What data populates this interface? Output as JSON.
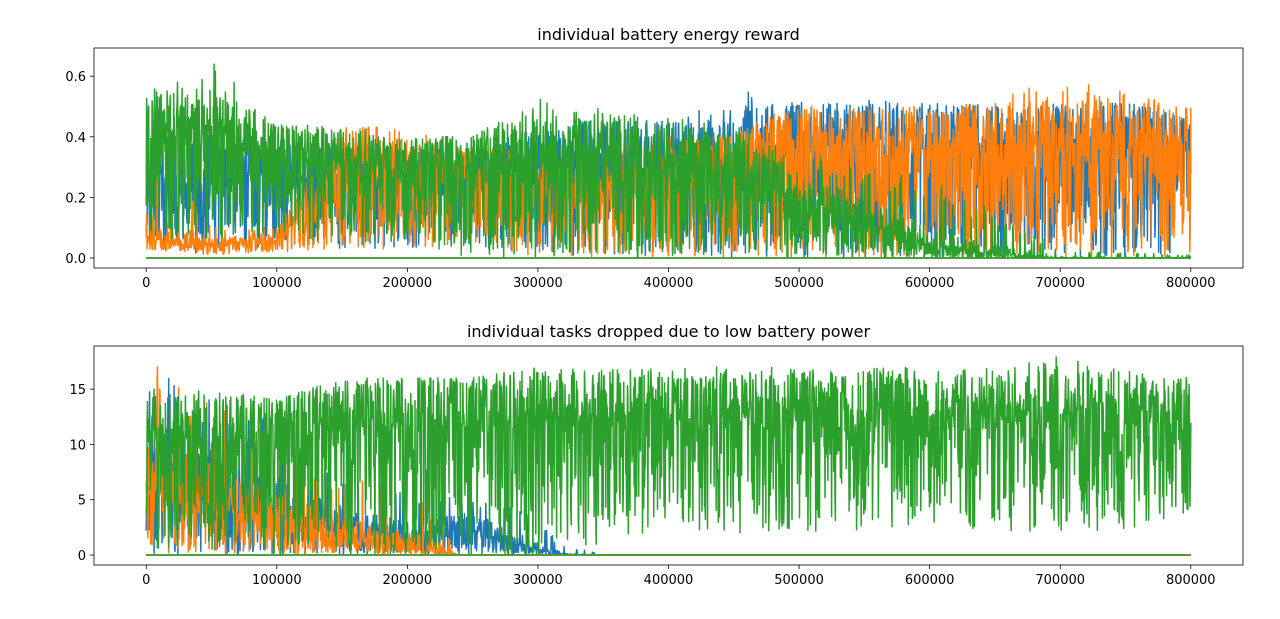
{
  "chart_data": [
    {
      "type": "line",
      "title": "individual battery energy reward",
      "xlabel": "",
      "ylabel": "",
      "xlim": [
        -40000,
        840000
      ],
      "ylim": [
        -0.033,
        0.693
      ],
      "xticks": [
        0,
        100000,
        200000,
        300000,
        400000,
        500000,
        600000,
        700000,
        800000
      ],
      "xtick_labels": [
        "0",
        "100000",
        "200000",
        "300000",
        "400000",
        "500000",
        "600000",
        "700000",
        "800000"
      ],
      "yticks": [
        0.0,
        0.2,
        0.4,
        0.6
      ],
      "ytick_labels": [
        "0.0",
        "0.2",
        "0.4",
        "0.6"
      ],
      "grid": false,
      "series": [
        {
          "color": "#1f77b4",
          "x": [
            0,
            50000,
            100000,
            150000,
            200000,
            250000,
            300000,
            350000,
            400000,
            450000,
            500000,
            550000,
            600000,
            650000,
            700000,
            750000,
            800000
          ],
          "upper": [
            0.57,
            0.45,
            0.4,
            0.38,
            0.37,
            0.35,
            0.44,
            0.46,
            0.45,
            0.55,
            0.54,
            0.52,
            0.52,
            0.5,
            0.52,
            0.53,
            0.45
          ],
          "lower": [
            0.03,
            0.01,
            0.03,
            0.03,
            0.03,
            0.04,
            0.0,
            0.0,
            0.0,
            0.0,
            0.0,
            0.0,
            0.0,
            0.0,
            0.0,
            0.0,
            0.0
          ],
          "band": [
            0.3,
            0.33,
            0.3,
            0.32,
            0.3,
            0.29,
            0.36,
            0.38,
            0.37,
            0.4,
            0.42,
            0.42,
            0.42,
            0.42,
            0.42,
            0.42,
            0.41
          ]
        },
        {
          "color": "#ff7f0e",
          "x": [
            0,
            50000,
            100000,
            150000,
            200000,
            250000,
            300000,
            350000,
            400000,
            450000,
            500000,
            550000,
            600000,
            650000,
            700000,
            750000,
            800000
          ],
          "upper": [
            0.42,
            0.11,
            0.1,
            0.45,
            0.42,
            0.37,
            0.35,
            0.37,
            0.4,
            0.4,
            0.53,
            0.5,
            0.5,
            0.52,
            0.6,
            0.55,
            0.5
          ],
          "lower": [
            0.03,
            0.01,
            0.02,
            0.03,
            0.03,
            0.04,
            0.0,
            0.0,
            0.0,
            0.0,
            0.0,
            0.0,
            0.0,
            0.0,
            0.0,
            0.0,
            0.0
          ],
          "band": [
            0.08,
            0.05,
            0.07,
            0.34,
            0.32,
            0.3,
            0.25,
            0.25,
            0.3,
            0.38,
            0.4,
            0.4,
            0.41,
            0.41,
            0.42,
            0.42,
            0.42
          ]
        },
        {
          "color": "#2ca02c",
          "x": [
            0,
            50000,
            100000,
            150000,
            200000,
            250000,
            300000,
            350000,
            400000,
            450000,
            500000,
            550000,
            600000,
            650000,
            700000,
            750000,
            800000
          ],
          "upper": [
            0.55,
            0.66,
            0.44,
            0.44,
            0.4,
            0.4,
            0.53,
            0.49,
            0.47,
            0.44,
            0.34,
            0.32,
            0.26,
            0.16,
            0.03,
            0.02,
            0.01
          ],
          "lower": [
            0.06,
            0.06,
            0.07,
            0.05,
            0.05,
            0.0,
            0.0,
            0.0,
            0.0,
            0.0,
            0.0,
            0.0,
            0.0,
            0.0,
            0.0,
            0.0,
            0.0
          ],
          "band": [
            0.45,
            0.46,
            0.38,
            0.35,
            0.33,
            0.36,
            0.38,
            0.37,
            0.36,
            0.33,
            0.22,
            0.14,
            0.05,
            0.02,
            0.0,
            0.0,
            0.0
          ]
        }
      ]
    },
    {
      "type": "line",
      "title": "individual tasks dropped due to low battery power",
      "xlabel": "",
      "ylabel": "",
      "xlim": [
        -40000,
        840000
      ],
      "ylim": [
        -0.9,
        18.9
      ],
      "xticks": [
        0,
        100000,
        200000,
        300000,
        400000,
        500000,
        600000,
        700000,
        800000
      ],
      "xtick_labels": [
        "0",
        "100000",
        "200000",
        "300000",
        "400000",
        "500000",
        "600000",
        "700000",
        "800000"
      ],
      "yticks": [
        0,
        5,
        10,
        15
      ],
      "ytick_labels": [
        "0",
        "5",
        "10",
        "15"
      ],
      "grid": false,
      "series": [
        {
          "color": "#1f77b4",
          "x": [
            0,
            50000,
            100000,
            150000,
            200000,
            250000,
            290000,
            320000,
            350000,
            800000
          ],
          "upper": [
            17,
            14,
            12,
            8,
            6,
            5,
            4,
            1,
            0,
            0
          ],
          "lower": [
            0,
            0,
            0,
            0,
            0,
            0,
            0,
            0,
            0,
            0
          ],
          "band": [
            8,
            7,
            5,
            3,
            2,
            3,
            1,
            0,
            0,
            0
          ]
        },
        {
          "color": "#ff7f0e",
          "x": [
            0,
            50000,
            100000,
            150000,
            200000,
            215000,
            240000,
            800000
          ],
          "upper": [
            18,
            14,
            10,
            8,
            6,
            5,
            0,
            0
          ],
          "lower": [
            0,
            0,
            0,
            0,
            0,
            0,
            0,
            0
          ],
          "band": [
            8,
            6,
            4,
            2,
            1,
            1,
            0,
            0
          ]
        },
        {
          "color": "#2ca02c",
          "x": [
            0,
            50000,
            100000,
            150000,
            200000,
            250000,
            300000,
            350000,
            400000,
            450000,
            500000,
            550000,
            600000,
            650000,
            700000,
            750000,
            800000
          ],
          "upper": [
            15,
            15,
            14,
            16,
            16,
            16,
            17,
            17,
            17,
            17,
            17,
            17,
            17,
            17,
            18,
            17,
            16
          ],
          "lower": [
            0,
            0,
            0,
            0,
            0,
            0,
            0,
            1,
            2,
            2,
            2,
            2,
            2,
            2,
            2,
            2,
            4
          ],
          "band": [
            12,
            12,
            13,
            13,
            14,
            14,
            14,
            14,
            14,
            14,
            14,
            14,
            14,
            14,
            14,
            14,
            14
          ]
        }
      ]
    }
  ]
}
